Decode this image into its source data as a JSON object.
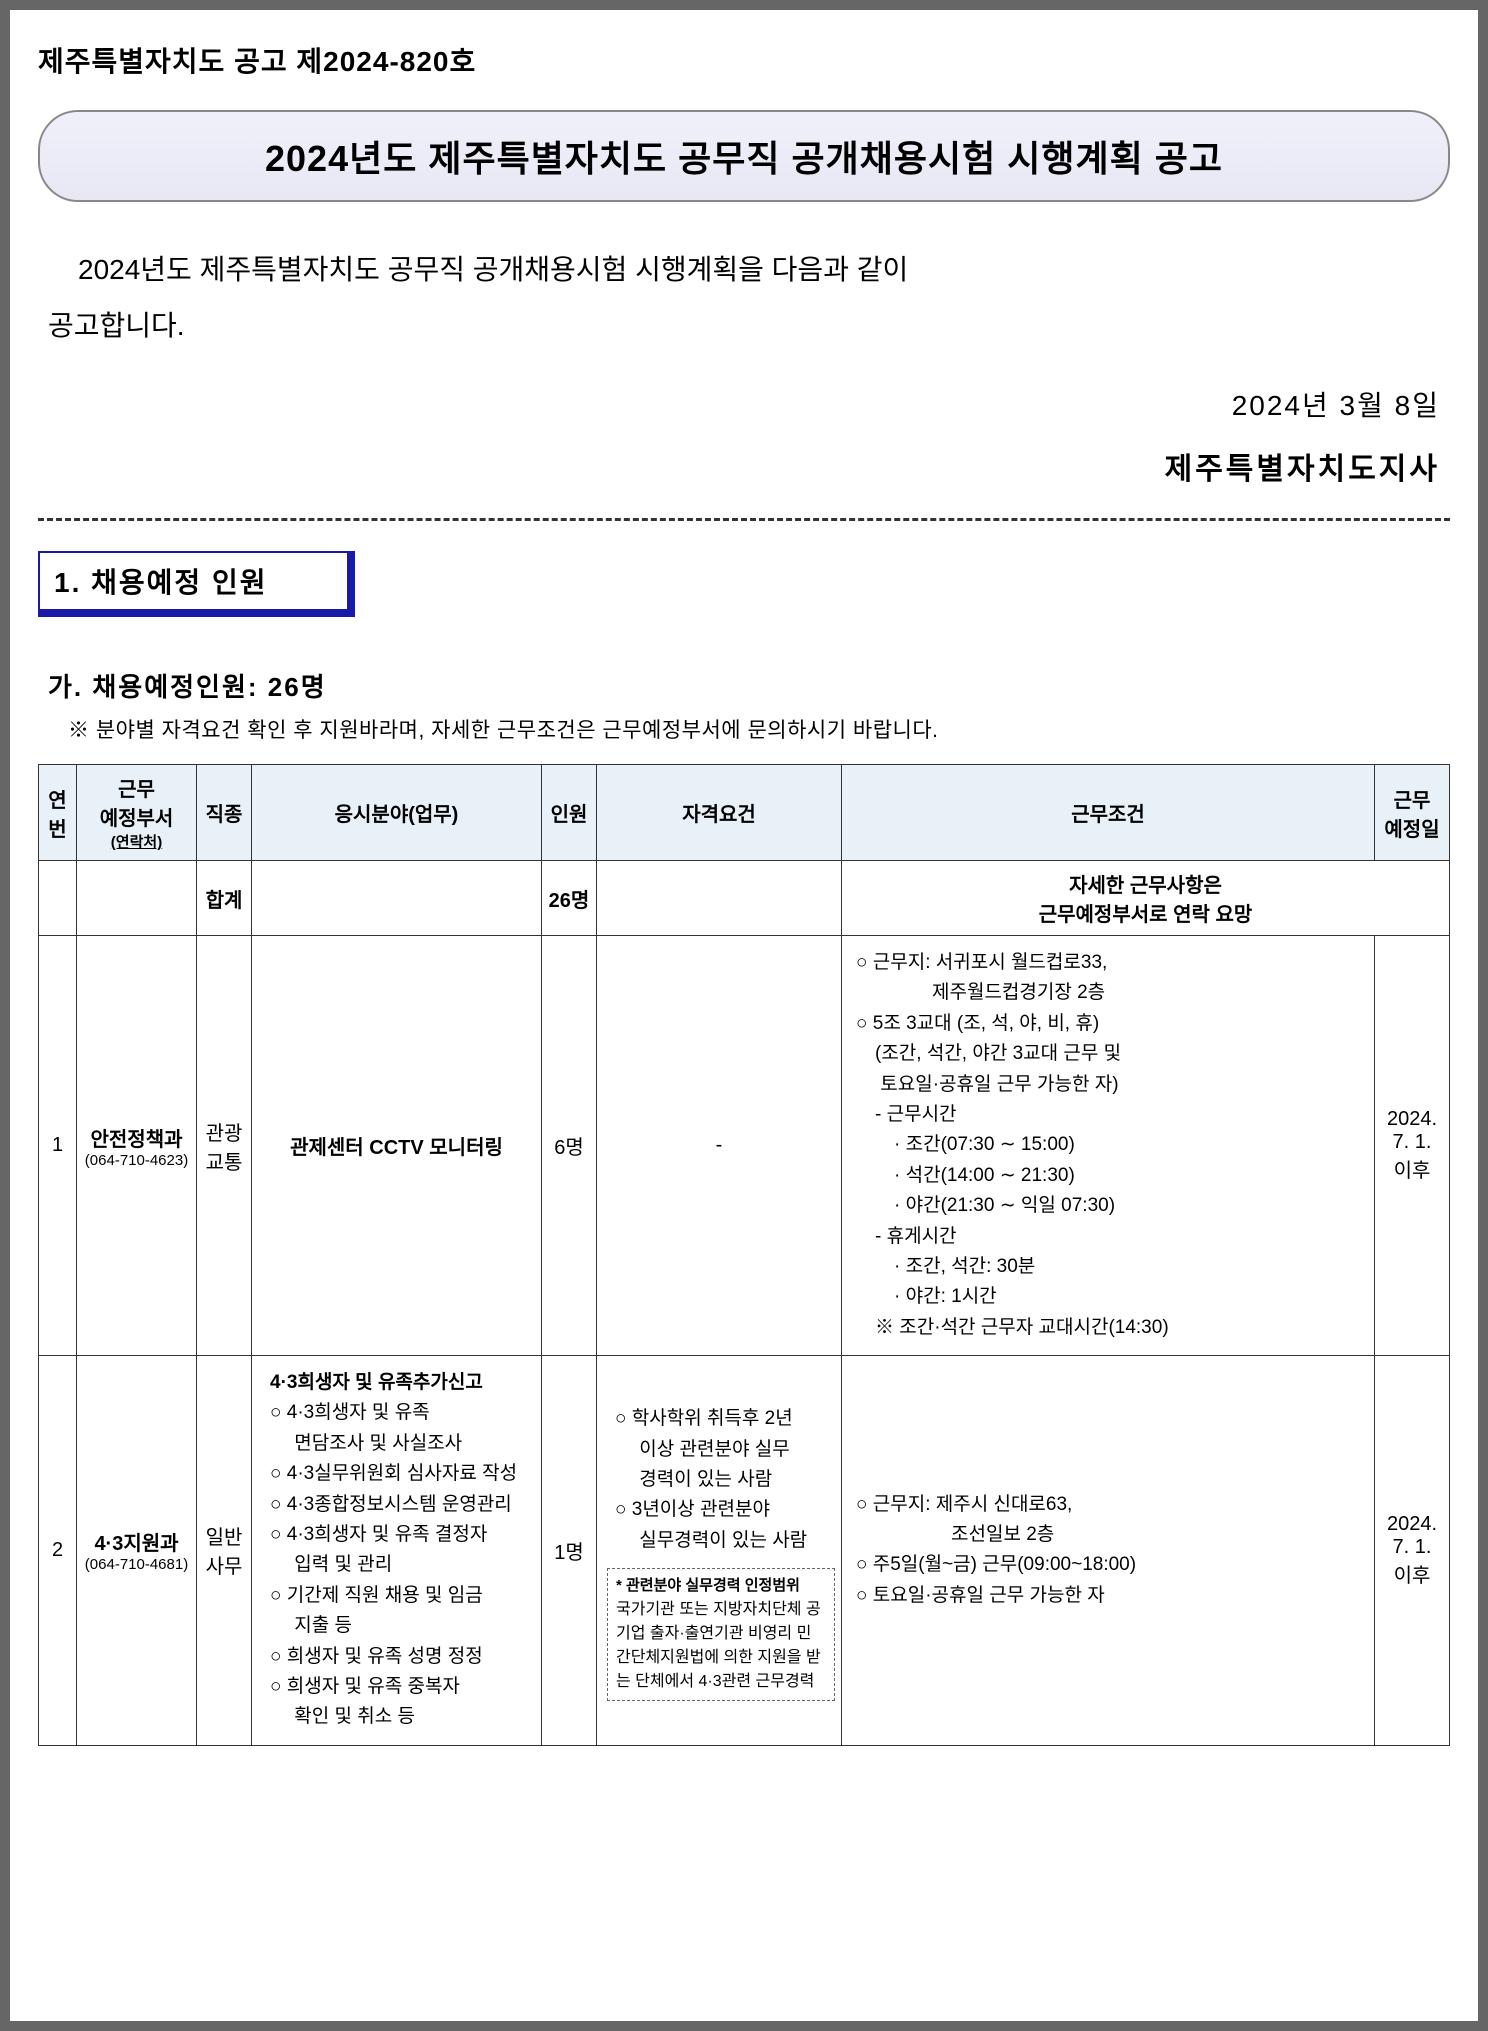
{
  "doc_number": "제주특별자치도 공고 제2024-820호",
  "main_title": "2024년도 제주특별자치도 공무직 공개채용시험 시행계획 공고",
  "intro": {
    "line1": "2024년도 제주특별자치도 공무직 공개채용시험 시행계획을 다음과 같이",
    "line2": "공고합니다."
  },
  "date": "2024년 3월 8일",
  "governor": "제주특별자치도지사",
  "section1_title": "1. 채용예정 인원",
  "sub_heading": "가. 채용예정인원: 26명",
  "note": "※ 분야별 자격요건 확인 후 지원바라며, 자세한 근무조건은 근무예정부서에 문의하시기 바랍니다.",
  "table": {
    "headers": {
      "no": "연번",
      "dept": "근무\n예정부서",
      "dept_sub": "(연락처)",
      "job_type": "직종",
      "field": "응시분야(업무)",
      "count": "인원",
      "requirements": "자격요건",
      "conditions": "근무조건",
      "start_date": "근무\n예정일"
    },
    "total_row": {
      "label": "합계",
      "count": "26명",
      "note": "자세한 근무사항은\n근무예정부서로 연락 요망"
    },
    "rows": [
      {
        "no": "1",
        "dept": "안전정책과",
        "phone": "(064-710-4623)",
        "job_type": "관광\n교통",
        "field": "관제센터 CCTV 모니터링",
        "count": "6명",
        "requirements": "-",
        "conditions": [
          "○ 근무지: 서귀포시 월드컵로33,",
          "　　　　제주월드컵경기장 2층",
          "○ 5조 3교대 (조, 석, 야, 비, 휴)",
          "　(조간, 석간, 야간 3교대 근무 및",
          "　 토요일·공휴일 근무 가능한 자)",
          "　- 근무시간",
          "　　· 조간(07:30 ∼ 15:00)",
          "　　· 석간(14:00 ∼ 21:30)",
          "　　· 야간(21:30 ∼ 익일 07:30)",
          "　- 휴게시간",
          "　　· 조간, 석간: 30분",
          "　　· 야간: 1시간",
          "　※ 조간·석간 근무자 교대시간(14:30)"
        ],
        "start_date": "2024.\n7. 1.\n이후"
      },
      {
        "no": "2",
        "dept": "4·3지원과",
        "phone": "(064-710-4681)",
        "job_type": "일반\n사무",
        "field_title": "4·3희생자 및 유족추가신고",
        "field_items": [
          "○ 4·3희생자 및 유족",
          "　 면담조사 및 사실조사",
          "○ 4·3실무위원회 심사자료 작성",
          "○ 4·3종합정보시스템 운영관리",
          "○ 4·3희생자 및 유족 결정자",
          "　 입력 및 관리",
          "○ 기간제 직원 채용 및 임금",
          "　 지출 등",
          "○ 희생자 및 유족 성명 정정",
          "○ 희생자 및 유족 중복자",
          "　 확인 및 취소 등"
        ],
        "count": "1명",
        "requirements": [
          "○ 학사학위 취득후 2년",
          "　 이상 관련분야 실무",
          "　 경력이 있는 사람",
          "○ 3년이상 관련분야",
          "　 실무경력이 있는 사람"
        ],
        "req_box_title": "* 관련분야 실무경력 인정범위",
        "req_box_body": "국가기관 또는 지방자치단체 공기업 출자·출연기관 비영리 민간단체지원법에 의한 지원을 받는 단체에서 4·3관련 근무경력",
        "conditions": [
          "○ 근무지: 제주시 신대로63,",
          "　　　　　조선일보 2층",
          "○ 주5일(월~금) 근무(09:00~18:00)",
          "○ 토요일·공휴일 근무 가능한 자"
        ],
        "start_date": "2024.\n7. 1.\n이후"
      }
    ]
  }
}
